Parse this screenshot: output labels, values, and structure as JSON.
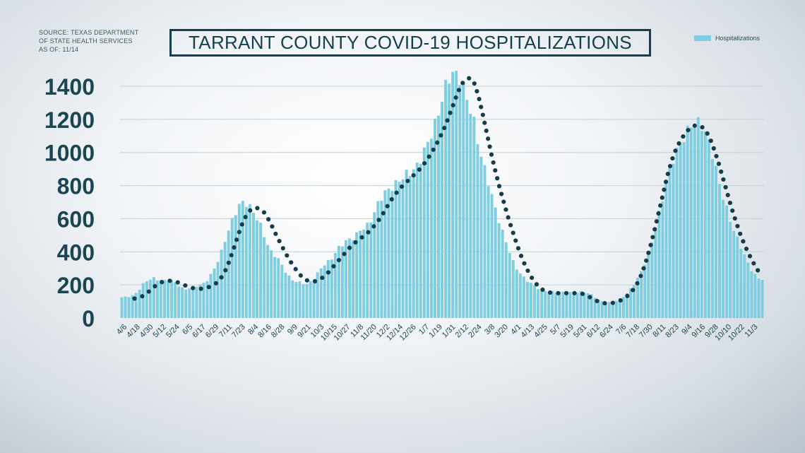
{
  "source": {
    "lines": [
      "SOURCE: TEXAS DEPARTMENT",
      "OF STATE HEALTH SERVICES",
      "AS OF: 11/14"
    ]
  },
  "colors": {
    "bar": "#7fcde0",
    "trend": "#153c48",
    "axis_text": "#1b4553",
    "grid": "#c7cfd5"
  },
  "chart_data": {
    "type": "bar",
    "title": "TARRANT COUNTY COVID-19 HOSPITALIZATIONS",
    "legend": [
      "Hospitalizations"
    ],
    "legend_position": "top-right",
    "grid": true,
    "ylim": [
      0,
      1400
    ],
    "yticks": [
      0,
      200,
      400,
      600,
      800,
      1000,
      1200,
      1400
    ],
    "x_tick_labels": [
      "4/6",
      "4/18",
      "4/30",
      "5/12",
      "5/24",
      "6/5",
      "6/17",
      "6/29",
      "7/11",
      "7/23",
      "8/4",
      "8/16",
      "8/28",
      "9/9",
      "9/21",
      "10/3",
      "10/15",
      "10/27",
      "11/8",
      "11/20",
      "12/2",
      "12/14",
      "12/26",
      "1/7",
      "1/19",
      "1/31",
      "2/12",
      "2/24",
      "3/8",
      "3/20",
      "4/1",
      "4/13",
      "4/25",
      "5/7",
      "5/19",
      "5/31",
      "6/12",
      "6/24",
      "7/6",
      "7/18",
      "7/30",
      "8/11",
      "8/23",
      "9/4",
      "9/16",
      "9/28",
      "10/10",
      "10/22",
      "11/3"
    ],
    "series": [
      {
        "name": "Hospitalizations",
        "kind": "bar",
        "x_start": "4/6",
        "step_days": 3,
        "values": [
          125,
          127,
          130,
          135,
          150,
          175,
          205,
          225,
          235,
          240,
          232,
          228,
          225,
          230,
          225,
          215,
          195,
          180,
          175,
          180,
          190,
          195,
          200,
          210,
          230,
          260,
          300,
          345,
          400,
          470,
          530,
          590,
          640,
          680,
          700,
          690,
          670,
          640,
          600,
          560,
          500,
          440,
          400,
          380,
          355,
          320,
          280,
          250,
          230,
          220,
          215,
          210,
          205,
          220,
          240,
          270,
          300,
          325,
          340,
          360,
          395,
          425,
          445,
          465,
          475,
          485,
          505,
          530,
          545,
          560,
          590,
          640,
          690,
          730,
          760,
          775,
          790,
          810,
          830,
          850,
          870,
          880,
          895,
          920,
          960,
          1010,
          1060,
          1110,
          1170,
          1240,
          1320,
          1400,
          1455,
          1475,
          1470,
          1450,
          1390,
          1320,
          1260,
          1180,
          1070,
          980,
          900,
          820,
          740,
          660,
          590,
          520,
          460,
          400,
          340,
          300,
          270,
          245,
          225,
          210,
          195,
          180,
          170,
          165,
          160,
          158,
          158,
          157,
          156,
          155,
          154,
          155,
          157,
          158,
          155,
          150,
          140,
          125,
          110,
          100,
          95,
          95,
          98,
          105,
          115,
          130,
          150,
          175,
          205,
          240,
          280,
          330,
          390,
          460,
          540,
          630,
          720,
          810,
          890,
          960,
          1010,
          1050,
          1090,
          1130,
          1165,
          1185,
          1180,
          1160,
          1120,
          1060,
          990,
          900,
          810,
          730,
          660,
          590,
          530,
          480,
          430,
          380,
          330,
          290,
          260,
          240,
          235
        ]
      },
      {
        "name": "Trend",
        "kind": "dotted-line",
        "x_start": "4/6",
        "step_days": 3,
        "values": [
          112,
          114,
          118,
          124,
          135,
          155,
          178,
          200,
          215,
          223,
          225,
          222,
          215,
          205,
          193,
          183,
          178,
          176,
          178,
          185,
          195,
          212,
          240,
          285,
          345,
          420,
          500,
          570,
          625,
          655,
          667,
          660,
          640,
          600,
          550,
          495,
          445,
          395,
          350,
          310,
          275,
          245,
          228,
          220,
          222,
          232,
          250,
          275,
          305,
          335,
          365,
          395,
          425,
          450,
          470,
          490,
          510,
          535,
          565,
          600,
          640,
          685,
          725,
          760,
          790,
          815,
          840,
          865,
          890,
          920,
          955,
          995,
          1040,
          1090,
          1145,
          1210,
          1280,
          1350,
          1410,
          1440,
          1450,
          1420,
          1340,
          1230,
          1110,
          990,
          880,
          780,
          690,
          600,
          520,
          440,
          370,
          310,
          260,
          220,
          190,
          170,
          157,
          152,
          150,
          150,
          150,
          150,
          150,
          150,
          148,
          140,
          125,
          110,
          98,
          90,
          88,
          90,
          95,
          105,
          120,
          140,
          170,
          210,
          265,
          340,
          430,
          530,
          640,
          750,
          860,
          950,
          1020,
          1070,
          1110,
          1140,
          1160,
          1165,
          1155,
          1130,
          1080,
          1010,
          930,
          840,
          750,
          660,
          580,
          505,
          440,
          385,
          335,
          290,
          255,
          220
        ]
      }
    ]
  }
}
